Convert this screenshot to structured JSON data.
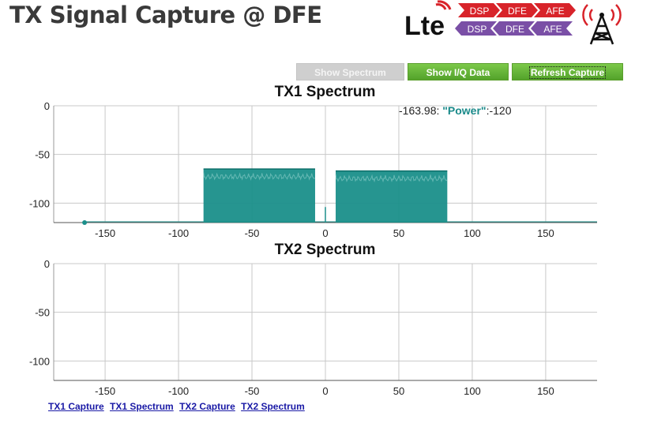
{
  "page": {
    "title": "TX Signal Capture @ DFE"
  },
  "logo": {
    "text": "Lte",
    "pipeline_top": [
      "DSP",
      "DFE",
      "AFE"
    ],
    "pipeline_bottom": [
      "DSP",
      "DFE",
      "AFE"
    ],
    "colors": {
      "top": "#d8232a",
      "bottom": "#7a4fa6"
    }
  },
  "toolbar": {
    "show_spectrum": "Show Spectrum",
    "show_iq": "Show I/Q Data",
    "refresh": "Refresh Capture"
  },
  "tooltip": {
    "x": "-163.98",
    "key": "\"Power\"",
    "value": "-120"
  },
  "chart_data": [
    {
      "type": "area",
      "title": "TX1 Spectrum",
      "xlim": [
        -185,
        185
      ],
      "ylim": [
        -120,
        0
      ],
      "xticks": [
        "-150",
        "-100",
        "-50",
        "0",
        "50",
        "100",
        "150"
      ],
      "yticks": [
        "0",
        "-50",
        "-100"
      ],
      "grid": true,
      "color": "#1a8f8a",
      "bands": [
        {
          "x_start": -83,
          "x_end": -7,
          "level": -65
        },
        {
          "x_start": 7,
          "x_end": 83,
          "level": -67
        }
      ],
      "noise_floor": -120,
      "spike": {
        "x": 0,
        "level": -104
      },
      "marker": {
        "x": -163.98,
        "y": -120
      }
    },
    {
      "type": "area",
      "title": "TX2 Spectrum",
      "xlim": [
        -185,
        185
      ],
      "ylim": [
        -120,
        0
      ],
      "xticks": [
        "-150",
        "-100",
        "-50",
        "0",
        "50",
        "100",
        "150"
      ],
      "yticks": [
        "0",
        "-50",
        "-100"
      ],
      "grid": true,
      "series": []
    }
  ],
  "links": [
    "TX1 Capture",
    "TX1 Spectrum",
    "TX2 Capture",
    "TX2 Spectrum"
  ]
}
